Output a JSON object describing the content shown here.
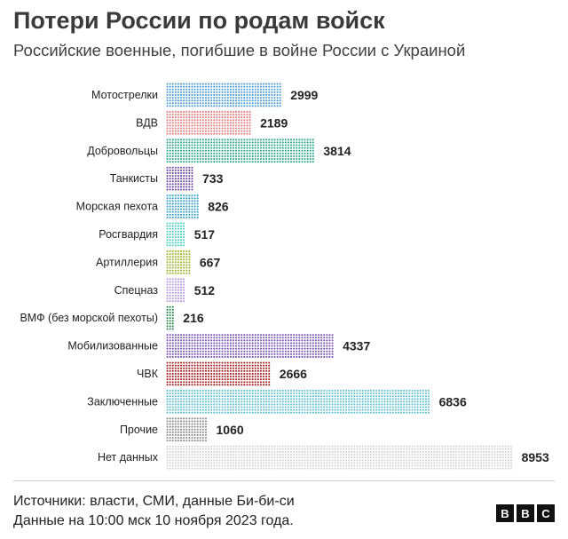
{
  "header": {
    "title": "Потери России по родам войск",
    "subtitle": "Российские военные, погибшие в войне России с Украиной"
  },
  "footer": {
    "source": "Источники: власти, СМИ, данные Би-би-си",
    "date": "Данные на 10:00 мск 10 ноября 2023 года.",
    "logo": [
      "B",
      "B",
      "C"
    ]
  },
  "chart_data": {
    "type": "bar",
    "orientation": "horizontal",
    "style": "dot-matrix",
    "title": "Потери России по родам войск",
    "subtitle": "Российские военные, погибшие в войне России с Украиной",
    "categories": [
      "Мотострелки",
      "ВДВ",
      "Добровольцы",
      "Танкисты",
      "Морская пехота",
      "Росгвардия",
      "Артиллерия",
      "Спецназ",
      "ВМФ (без морской пехоты)",
      "Мобилизованные",
      "ЧВК",
      "Заключенные",
      "Прочие",
      "Нет данных"
    ],
    "values": [
      2999,
      2189,
      3814,
      733,
      826,
      517,
      667,
      512,
      216,
      4337,
      2666,
      6836,
      1060,
      8953
    ],
    "colors": [
      "#4d9dd5",
      "#e57f7f",
      "#2fa88b",
      "#6e46a6",
      "#3aa3c9",
      "#4fcfc1",
      "#9fb534",
      "#b89ae6",
      "#2d8a4e",
      "#7a56b8",
      "#a51e22",
      "#62c2d2",
      "#8c8c8c",
      "#d6d6d6"
    ],
    "xlim": [
      0,
      8953
    ],
    "grid": false,
    "legend": "none"
  }
}
